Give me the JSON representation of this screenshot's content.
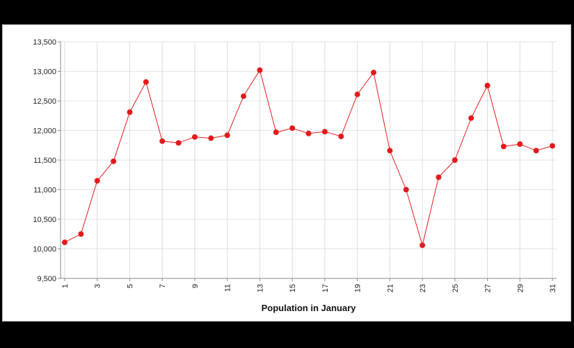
{
  "chart_data": {
    "type": "line",
    "xlabel": "Population in January",
    "ylabel": "",
    "ylim": [
      9500,
      13500
    ],
    "yticks": [
      "9,500",
      "10,000",
      "10,500",
      "11,000",
      "11,500",
      "12,000",
      "12,500",
      "13,000",
      "13,500"
    ],
    "xlim": [
      1,
      31
    ],
    "xticks": [
      "1",
      "3",
      "5",
      "7",
      "9",
      "11",
      "13",
      "15",
      "17",
      "19",
      "21",
      "23",
      "25",
      "27",
      "29",
      "31"
    ],
    "grid": true,
    "line_color": "#e31a1c",
    "x": [
      1,
      2,
      3,
      4,
      5,
      6,
      7,
      8,
      9,
      10,
      11,
      12,
      13,
      14,
      15,
      16,
      17,
      18,
      19,
      20,
      21,
      22,
      23,
      24,
      25,
      26,
      27,
      28,
      29,
      30,
      31
    ],
    "y": [
      10110,
      10250,
      11150,
      11480,
      12310,
      12820,
      11820,
      11790,
      11890,
      11870,
      11920,
      12580,
      13020,
      11970,
      12040,
      11950,
      11980,
      11900,
      12610,
      12980,
      11660,
      11000,
      10060,
      11210,
      11500,
      12210,
      12760,
      11730,
      11770,
      11660,
      11740
    ]
  }
}
